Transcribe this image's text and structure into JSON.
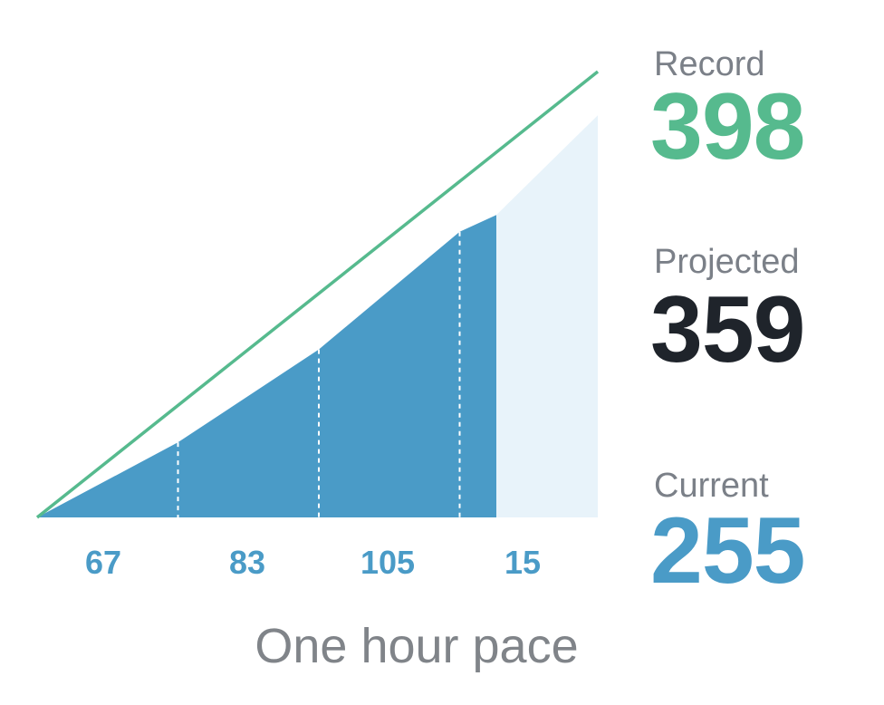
{
  "chart_data": {
    "type": "area",
    "title": "",
    "caption": "One hour pace",
    "segments": [
      {
        "label": "67",
        "value": 67
      },
      {
        "label": "83",
        "value": 83
      },
      {
        "label": "105",
        "value": 105
      },
      {
        "label": "15",
        "value": 15
      }
    ],
    "cumulative": [
      0,
      67,
      150,
      255,
      270
    ],
    "projected_end": 359,
    "record_end": 398,
    "stats": {
      "record": {
        "label": "Record",
        "value": "398"
      },
      "projected": {
        "label": "Projected",
        "value": "359"
      },
      "current": {
        "label": "Current",
        "value": "255"
      }
    },
    "colors": {
      "current_fill": "#4a9bc7",
      "projected_fill": "#e8f3fa",
      "record_line": "#56ba8e",
      "record_text": "#56ba8e",
      "projected_text": "#1f242b",
      "current_text": "#4a9bc7",
      "label_gray": "#7b8088",
      "divider": "#ffffff"
    }
  }
}
